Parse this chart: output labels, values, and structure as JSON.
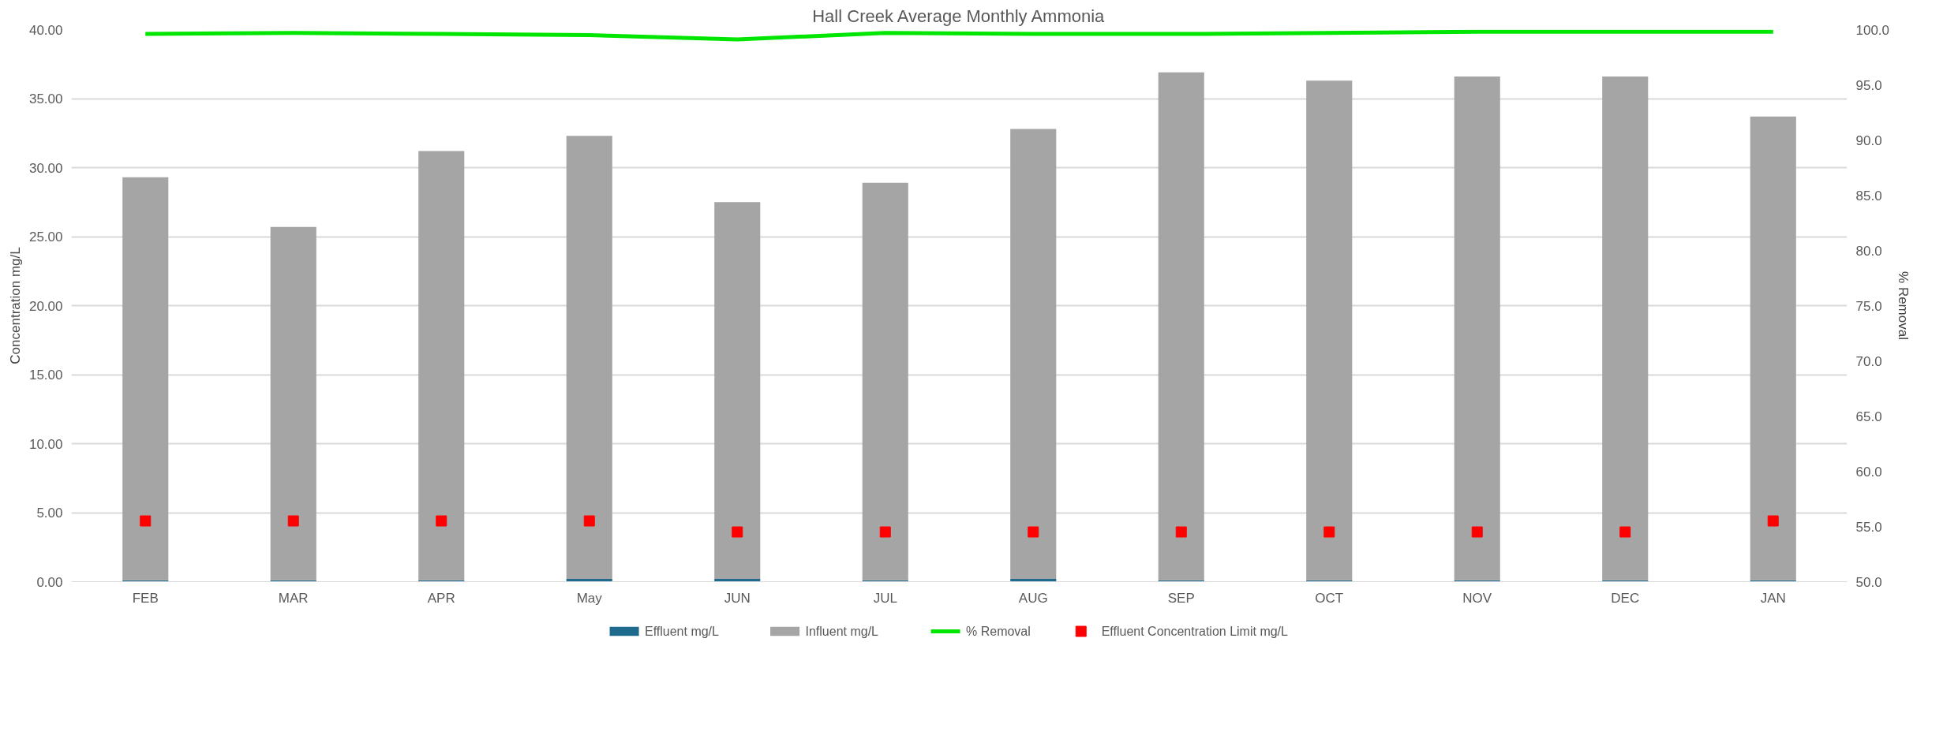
{
  "chart_data": {
    "type": "bar",
    "title": "Hall Creek Average Monthly Ammonia",
    "ylabel": "Concentration mg/L",
    "y2label": "% Removal",
    "categories": [
      "FEB",
      "MAR",
      "APR",
      "May",
      "JUN",
      "JUL",
      "AUG",
      "SEP",
      "OCT",
      "NOV",
      "DEC",
      "JAN"
    ],
    "stacked": true,
    "series": [
      {
        "name": "Effluent mg/L",
        "color": "#1f6b8e",
        "values": [
          0.1,
          0.1,
          0.1,
          0.2,
          0.2,
          0.1,
          0.2,
          0.1,
          0.1,
          0.1,
          0.1,
          0.1
        ]
      },
      {
        "name": "Influent mg/L",
        "color": "#a5a5a5",
        "values": [
          29.2,
          25.6,
          31.1,
          32.1,
          27.3,
          28.8,
          32.6,
          36.8,
          36.2,
          36.5,
          36.5,
          33.6
        ]
      },
      {
        "name": "% Removal",
        "type": "line",
        "axis": "y2",
        "color": "#00e600",
        "values": [
          99.6,
          99.7,
          99.6,
          99.5,
          99.1,
          99.7,
          99.6,
          99.6,
          99.7,
          99.8,
          99.8,
          99.8
        ]
      },
      {
        "name": "Effluent Concentration Limit mg/L",
        "type": "scatter",
        "marker": "square",
        "color": "#ff0000",
        "values": [
          4.4,
          4.4,
          4.4,
          4.4,
          3.6,
          3.6,
          3.6,
          3.6,
          3.6,
          3.6,
          3.6,
          4.4
        ]
      }
    ],
    "ylim": [
      0,
      40
    ],
    "yticks": [
      {
        "value": 0,
        "label": "0.00"
      },
      {
        "value": 5,
        "label": "5.00"
      },
      {
        "value": 10,
        "label": "10.00"
      },
      {
        "value": 15,
        "label": "15.00"
      },
      {
        "value": 20,
        "label": "20.00"
      },
      {
        "value": 25,
        "label": "25.00"
      },
      {
        "value": 30,
        "label": "30.00"
      },
      {
        "value": 35,
        "label": "35.00"
      },
      {
        "value": 40,
        "label": "40.00"
      }
    ],
    "y2lim": [
      50,
      100
    ],
    "y2ticks": [
      {
        "value": 50,
        "label": "50.0"
      },
      {
        "value": 55,
        "label": "55.0"
      },
      {
        "value": 60,
        "label": "60.0"
      },
      {
        "value": 65,
        "label": "65.0"
      },
      {
        "value": 70,
        "label": "70.0"
      },
      {
        "value": 75,
        "label": "75.0"
      },
      {
        "value": 80,
        "label": "80.0"
      },
      {
        "value": 85,
        "label": "85.0"
      },
      {
        "value": 90,
        "label": "90.0"
      },
      {
        "value": 95,
        "label": "95.0"
      },
      {
        "value": 100,
        "label": "100.0"
      }
    ],
    "grid": "y",
    "legend": "bottom"
  }
}
